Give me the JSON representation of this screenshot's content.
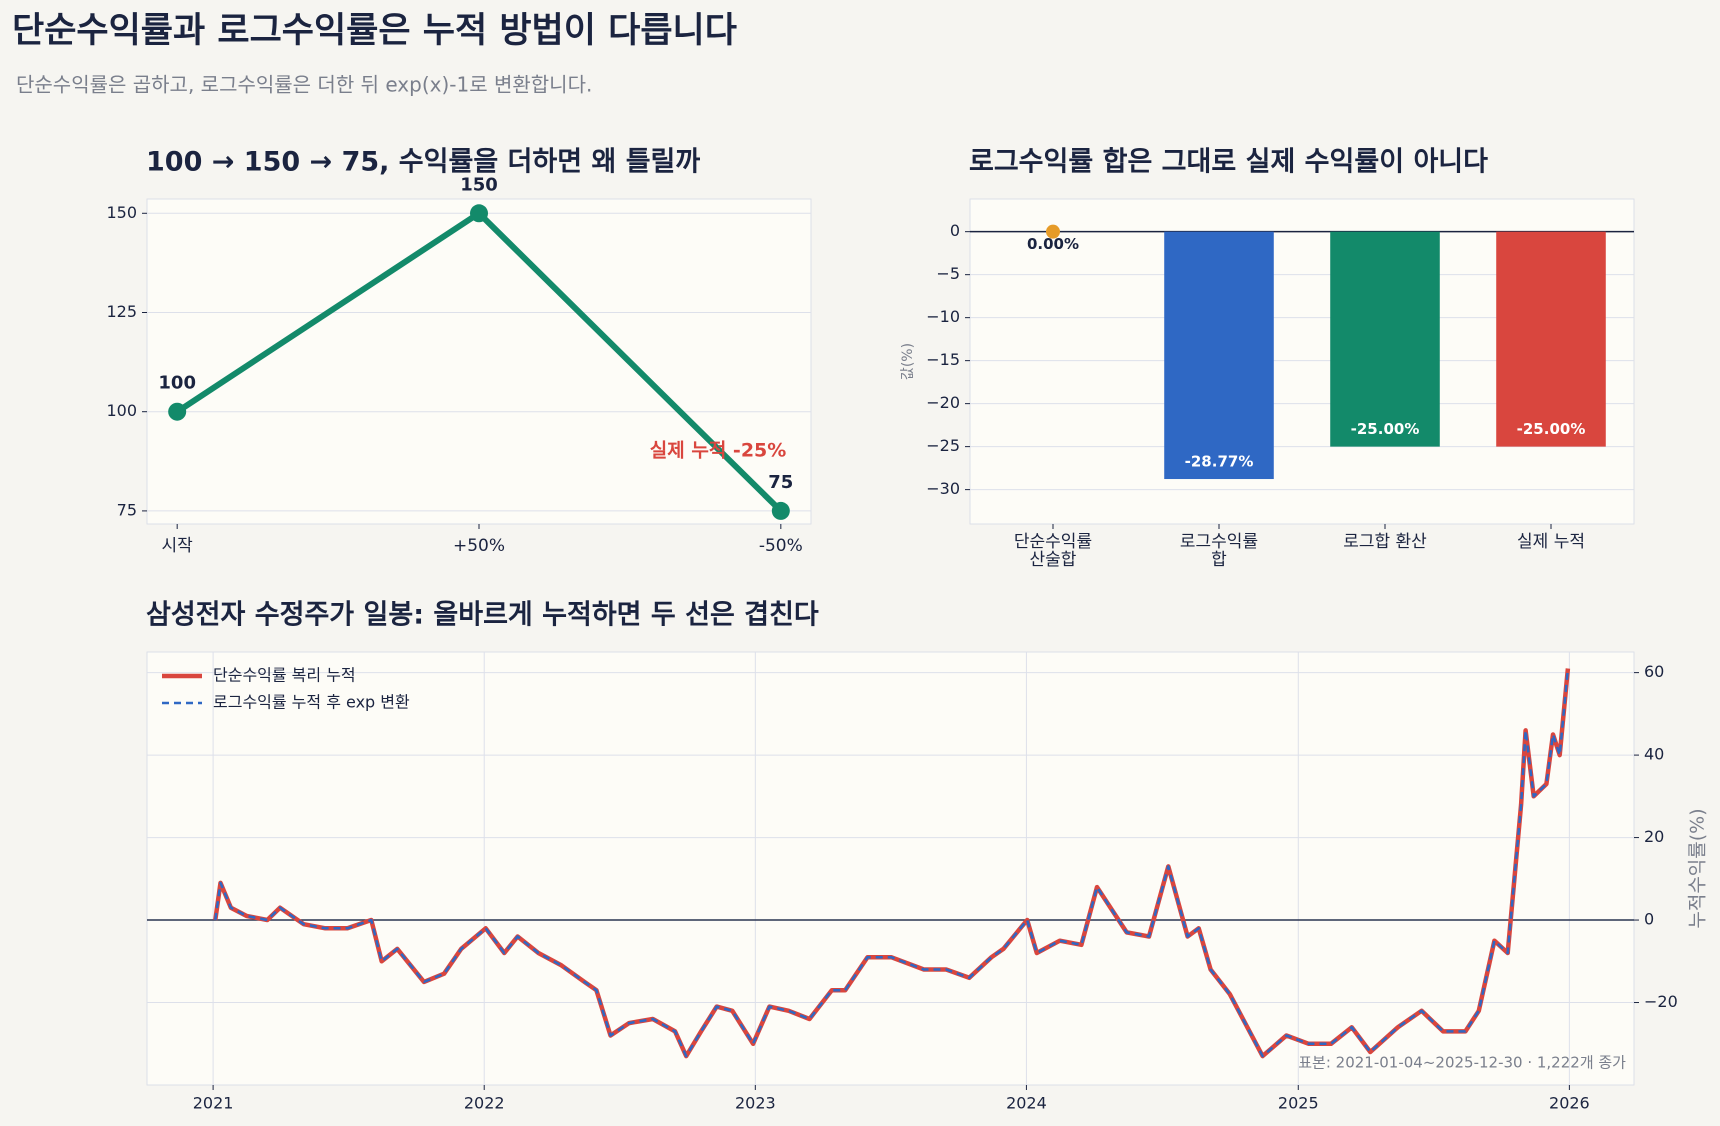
{
  "header": {
    "title": "단순수익률과 로그수익률은 누적 방법이 다릅니다",
    "subtitle": "단순수익률은 곱하고, 로그수익률은 더한 뒤 exp(x)-1로 변환합니다."
  },
  "chart_data": [
    {
      "type": "line",
      "title": "100 → 150 → 75, 수익률을 더하면 왜 틀릴까",
      "categories": [
        "시작",
        "+50%",
        "-50%"
      ],
      "values": [
        100,
        150,
        75
      ],
      "color": "#138a6a",
      "ylim": [
        71.7,
        153.6
      ],
      "yticks": [
        75,
        100,
        125,
        150
      ],
      "grid": true,
      "annotation": "실제 누적 -25%"
    },
    {
      "type": "bar",
      "title": "로그수익률 합은 그대로 실제 수익률이 아니다",
      "categories": [
        "단순수익률\n산술합",
        "로그수익률\n합",
        "로그합 환산",
        "실제 누적"
      ],
      "values": [
        0,
        -28.77,
        -25,
        -25
      ],
      "value_labels": [
        "0.00%",
        "-28.77%",
        "-25.00%",
        "-25.00%"
      ],
      "colors": [
        "#e69b28",
        "#2f68c4",
        "#138a6a",
        "#d9463e"
      ],
      "ylabel": "값(%)",
      "ylim": [
        -34,
        3.8
      ],
      "yticks": [
        0,
        {
          "value": -5,
          "label": "−5"
        },
        {
          "value": -10,
          "label": "−10"
        },
        {
          "value": -15,
          "label": "−15"
        },
        {
          "value": -20,
          "label": "−20"
        },
        {
          "value": -25,
          "label": "−25"
        },
        {
          "value": -30,
          "label": "−30"
        }
      ],
      "grid": true,
      "zero_line": true
    },
    {
      "type": "line",
      "title": "삼성전자 수정주가 일봉: 올바르게 누적하면 두 선은 겹친다",
      "x": [
        "2021-01-04",
        "2021-01-11",
        "2021-01-25",
        "2021-02-15",
        "2021-03-15",
        "2021-04-01",
        "2021-05-03",
        "2021-06-01",
        "2021-07-01",
        "2021-08-02",
        "2021-08-16",
        "2021-09-06",
        "2021-10-12",
        "2021-11-08",
        "2021-12-01",
        "2022-01-03",
        "2022-01-28",
        "2022-02-15",
        "2022-03-15",
        "2022-04-15",
        "2022-05-16",
        "2022-06-01",
        "2022-06-20",
        "2022-07-15",
        "2022-08-16",
        "2022-09-15",
        "2022-09-30",
        "2022-10-20",
        "2022-11-10",
        "2022-12-01",
        "2022-12-29",
        "2023-01-20",
        "2023-02-15",
        "2023-03-15",
        "2023-04-14",
        "2023-05-02",
        "2023-06-01",
        "2023-07-03",
        "2023-08-16",
        "2023-09-15",
        "2023-10-16",
        "2023-11-15",
        "2023-12-01",
        "2024-01-02",
        "2024-01-15",
        "2024-02-15",
        "2024-03-15",
        "2024-04-05",
        "2024-05-15",
        "2024-06-14",
        "2024-07-10",
        "2024-08-05",
        "2024-08-20",
        "2024-09-05",
        "2024-10-01",
        "2024-11-14",
        "2024-12-16",
        "2025-01-15",
        "2025-02-14",
        "2025-03-14",
        "2025-04-08",
        "2025-05-15",
        "2025-06-16",
        "2025-07-15",
        "2025-08-14",
        "2025-09-01",
        "2025-09-22",
        "2025-10-10",
        "2025-10-28",
        "2025-11-03",
        "2025-11-14",
        "2025-12-01",
        "2025-12-10",
        "2025-12-19",
        "2025-12-30"
      ],
      "series": [
        {
          "name": "단순수익률 복리 누적",
          "color": "#d9463e",
          "values": [
            0,
            9,
            3,
            1,
            0,
            3,
            -1,
            -2,
            -2,
            0,
            -10,
            -7,
            -15,
            -13,
            -7,
            -2,
            -8,
            -4,
            -8,
            -11,
            -15,
            -17,
            -28,
            -25,
            -24,
            -27,
            -33,
            -27,
            -21,
            -22,
            -30,
            -21,
            -22,
            -24,
            -17,
            -17,
            -9,
            -9,
            -12,
            -12,
            -14,
            -9,
            -7,
            0,
            -8,
            -5,
            -6,
            8,
            -3,
            -4,
            13,
            -4,
            -2,
            -12,
            -18,
            -33,
            -28,
            -30,
            -30,
            -26,
            -32,
            -26,
            -22,
            -27,
            -27,
            -22,
            -5,
            -8,
            28,
            46,
            30,
            33,
            45,
            40,
            61
          ]
        },
        {
          "name": "로그수익률 누적 후 exp 변환",
          "color": "#2f68c4",
          "dashed": true,
          "values": [
            0,
            9,
            3,
            1,
            0,
            3,
            -1,
            -2,
            -2,
            0,
            -10,
            -7,
            -15,
            -13,
            -7,
            -2,
            -8,
            -4,
            -8,
            -11,
            -15,
            -17,
            -28,
            -25,
            -24,
            -27,
            -33,
            -27,
            -21,
            -22,
            -30,
            -21,
            -22,
            -24,
            -17,
            -17,
            -9,
            -9,
            -12,
            -12,
            -14,
            -9,
            -7,
            0,
            -8,
            -5,
            -6,
            8,
            -3,
            -4,
            13,
            -4,
            -2,
            -12,
            -18,
            -33,
            -28,
            -30,
            -30,
            -26,
            -32,
            -26,
            -22,
            -27,
            -27,
            -22,
            -5,
            -8,
            28,
            46,
            30,
            33,
            45,
            40,
            61
          ]
        }
      ],
      "xlim": [
        "2020-10-04",
        "2026-03-29"
      ],
      "xticks": [
        {
          "value": "2021-01-01",
          "label": "2021"
        },
        {
          "value": "2022-01-01",
          "label": "2022"
        },
        {
          "value": "2023-01-01",
          "label": "2023"
        },
        {
          "value": "2024-01-01",
          "label": "2024"
        },
        {
          "value": "2025-01-01",
          "label": "2025"
        },
        {
          "value": "2026-01-01",
          "label": "2026"
        }
      ],
      "ylim": [
        -40,
        65
      ],
      "yticks": [
        {
          "value": -20,
          "label": "−20"
        },
        0,
        20,
        40,
        60
      ],
      "yaxis_position": "right",
      "ylabel": "누적수익률(%)",
      "grid": true,
      "zero_line": true,
      "legend": "upper left",
      "annotation": "표본: 2021-01-04~2025-12-30 · 1,222개 종가"
    }
  ]
}
